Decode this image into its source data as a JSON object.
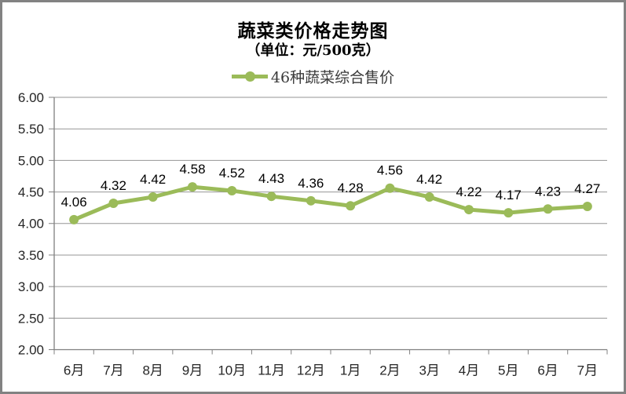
{
  "chart_data": {
    "type": "line",
    "title": "蔬菜类价格走势图",
    "subtitle": "（单位：元/500克）",
    "legend_position": "top",
    "categories": [
      "6月",
      "7月",
      "8月",
      "9月",
      "10月",
      "11月",
      "12月",
      "1月",
      "2月",
      "3月",
      "4月",
      "5月",
      "6月",
      "7月"
    ],
    "series": [
      {
        "name": "46种蔬菜综合售价",
        "values": [
          4.06,
          4.32,
          4.42,
          4.58,
          4.52,
          4.43,
          4.36,
          4.28,
          4.56,
          4.42,
          4.22,
          4.17,
          4.23,
          4.27
        ]
      }
    ],
    "xlabel": "",
    "ylabel": "",
    "ylim": [
      2.0,
      6.0
    ],
    "ytick_step": 0.5,
    "ytick_labels": [
      "2.00",
      "2.50",
      "3.00",
      "3.50",
      "4.00",
      "4.50",
      "5.00",
      "5.50",
      "6.00"
    ],
    "grid": true,
    "data_labels_visible": true,
    "data_label_decimals": 2,
    "colors": {
      "series": "#9BBB59",
      "grid": "#969696",
      "axis": "#808080",
      "frame": "#828282",
      "tick_text": "#262626",
      "label_text": "#000000"
    }
  }
}
